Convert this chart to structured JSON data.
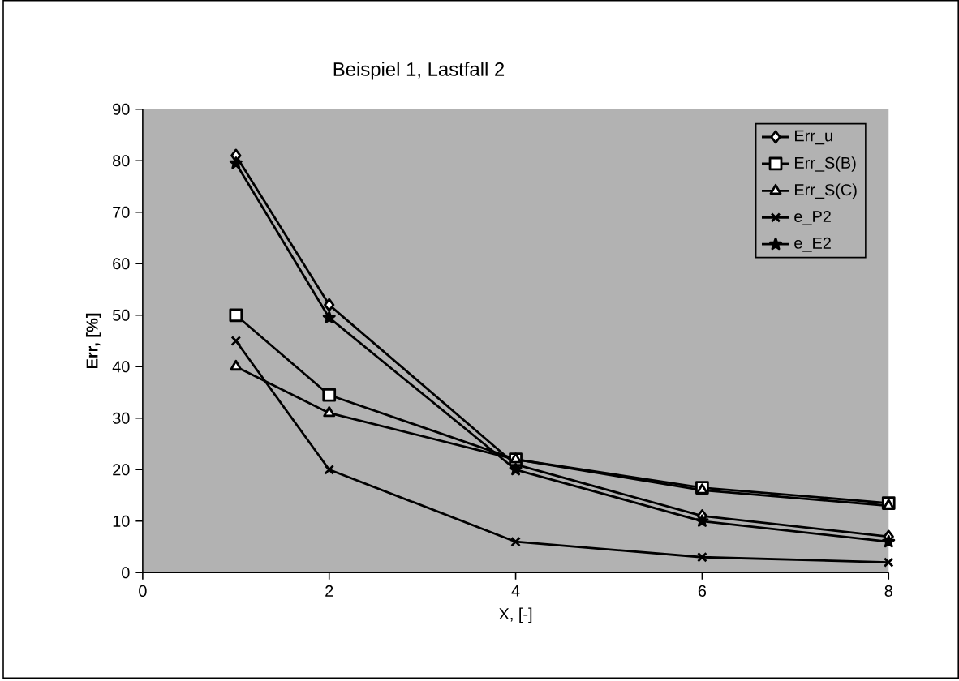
{
  "chart_data": {
    "type": "line",
    "title": "Beispiel 1, Lastfall 2",
    "xlabel": "X, [-]",
    "ylabel": "Err, [%]",
    "xlim": [
      0,
      8
    ],
    "ylim": [
      0,
      90
    ],
    "xticks": [
      0,
      2,
      4,
      6,
      8
    ],
    "yticks": [
      0,
      10,
      20,
      30,
      40,
      50,
      60,
      70,
      80,
      90
    ],
    "legend": "top right",
    "grid": false,
    "series": [
      {
        "name": "Err_u",
        "color": "#000000",
        "marker": "diamond",
        "x": [
          1,
          2,
          4,
          6,
          8
        ],
        "values": [
          81,
          52,
          21,
          11,
          7
        ]
      },
      {
        "name": "Err_S(B)",
        "color": "#000000",
        "marker": "square",
        "x": [
          1,
          2,
          4,
          6,
          8
        ],
        "values": [
          50,
          34.5,
          22,
          16.5,
          13.5
        ]
      },
      {
        "name": "Err_S(C)",
        "color": "#000000",
        "marker": "triangle",
        "x": [
          1,
          2,
          4,
          6,
          8
        ],
        "values": [
          40,
          31,
          22,
          16,
          13
        ]
      },
      {
        "name": "e_P2",
        "color": "#000000",
        "marker": "cross",
        "x": [
          1,
          2,
          4,
          6,
          8
        ],
        "values": [
          45,
          20,
          6,
          3,
          2
        ]
      },
      {
        "name": "e_E2",
        "color": "#000000",
        "marker": "star",
        "x": [
          1,
          2,
          4,
          6,
          8
        ],
        "values": [
          79.5,
          49.5,
          20,
          10,
          6
        ]
      }
    ]
  }
}
